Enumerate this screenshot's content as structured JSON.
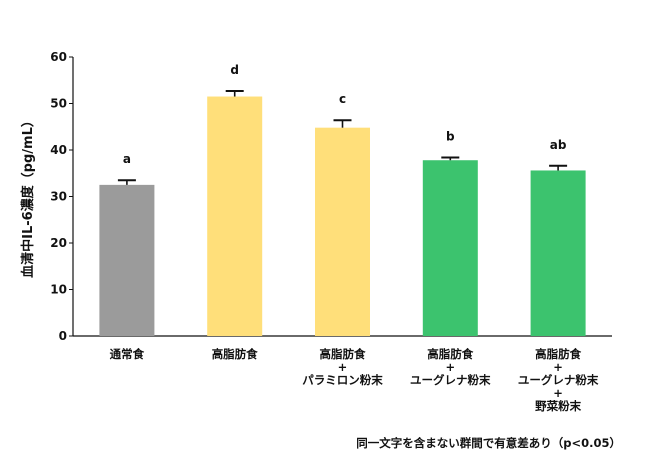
{
  "chart_data": {
    "type": "bar",
    "ylabel": "血清中IL-6濃度（pg/mL）",
    "ylim": [
      0,
      60
    ],
    "yticks": [
      0,
      10,
      20,
      30,
      40,
      50,
      60
    ],
    "grid": false,
    "categories": [
      [
        "通常食"
      ],
      [
        "高脂肪食"
      ],
      [
        "高脂肪食",
        "+",
        "パラミロン粉末"
      ],
      [
        "高脂肪食",
        "+",
        "ユーグレナ粉末"
      ],
      [
        "高脂肪食",
        "+",
        "ユーグレナ粉末",
        "+",
        "野菜粉末"
      ]
    ],
    "values": [
      32.5,
      51.5,
      44.8,
      37.8,
      35.6
    ],
    "errors": [
      1.0,
      1.2,
      1.6,
      0.6,
      1.0
    ],
    "significance": [
      "a",
      "d",
      "c",
      "b",
      "ab"
    ],
    "colors": [
      "#9b9b9b",
      "#ffdf7a",
      "#ffdf7a",
      "#3cc36e",
      "#3cc36e"
    ]
  },
  "note": "同一文字を含まない群間で有意差あり（p<0.05）"
}
